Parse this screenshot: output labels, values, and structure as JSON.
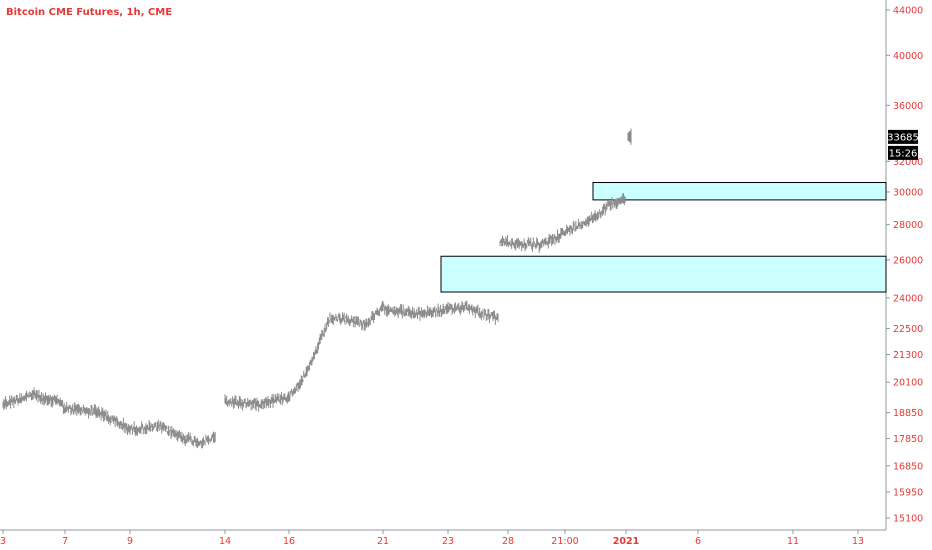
{
  "colors": {
    "label": "#e53935",
    "axis": "#9598a1",
    "candles": "#8a8a8a",
    "zone_fill": "#ccffff",
    "zone_stroke": "#000000",
    "badge_bg": "#000000"
  },
  "chart_data": {
    "type": "candlestick",
    "title": "Bitcoin CME Futures, 1h, CME",
    "scale": "log",
    "grid": false,
    "ylim": [
      14500,
      46000
    ],
    "y_ticks": [
      "15100",
      "15950",
      "16850",
      "17850",
      "18850",
      "20100",
      "21300",
      "22500",
      "24000",
      "26000",
      "28000",
      "30000",
      "32000",
      "36000",
      "40000",
      "44000"
    ],
    "x_ticks": [
      "3",
      "7",
      "9",
      "14",
      "16",
      "21",
      "23",
      "28",
      "21:00",
      "2021",
      "6",
      "11",
      "13"
    ],
    "price_label": {
      "value": "33685",
      "countdown": "15:26"
    },
    "zones": [
      {
        "start_label": "30",
        "price_top": 30600,
        "price_bottom": 29500
      },
      {
        "start_label": "23",
        "price_top": 26200,
        "price_bottom": 24300
      }
    ],
    "series": [
      {
        "segment": 1,
        "x": [
          "3",
          "4",
          "5",
          "6",
          "7",
          "8",
          "9",
          "10",
          "11",
          "12",
          "13"
        ],
        "y": [
          19200,
          19600,
          19300,
          19400,
          19000,
          18900,
          18200,
          18300,
          17900,
          17700,
          17900
        ]
      },
      {
        "segment": 2,
        "x": [
          "14",
          "15",
          "16",
          "17",
          "18",
          "19",
          "20",
          "21",
          "22",
          "23",
          "24",
          "25",
          "26",
          "27"
        ],
        "y": [
          19300,
          19200,
          19500,
          20500,
          23000,
          22900,
          22700,
          23500,
          23200,
          23400,
          23600,
          23200,
          23000,
          23300
        ]
      },
      {
        "segment": 3,
        "x": [
          "28",
          "29",
          "30",
          "31",
          "1"
        ],
        "y": [
          27000,
          26800,
          28500,
          29300,
          29600
        ]
      },
      {
        "segment": 4,
        "x": [
          "2"
        ],
        "y": [
          33700
        ]
      }
    ]
  }
}
